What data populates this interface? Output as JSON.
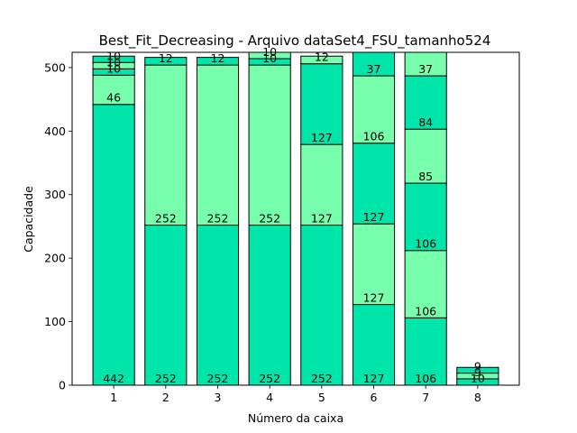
{
  "chart_data": {
    "type": "bar",
    "stacked": true,
    "title": "Best_Fit_Decreasing - Arquivo dataSet4_FSU_tamanho524",
    "xlabel": "Número da caixa",
    "ylabel": "Capacidade",
    "xlim": [
      0.2,
      8.8
    ],
    "ylim": [
      0,
      524
    ],
    "yticks": [
      0,
      100,
      200,
      300,
      400,
      500
    ],
    "categories": [
      "1",
      "2",
      "3",
      "4",
      "5",
      "6",
      "7",
      "8"
    ],
    "bins": [
      [
        442,
        46,
        10,
        10,
        10
      ],
      [
        252,
        252,
        12
      ],
      [
        252,
        252,
        12
      ],
      [
        252,
        252,
        10,
        10
      ],
      [
        252,
        127,
        127,
        12
      ],
      [
        127,
        127,
        127,
        106,
        37
      ],
      [
        106,
        106,
        106,
        85,
        84,
        37
      ],
      [
        10,
        9,
        9
      ]
    ],
    "colors": [
      "#00e6aa",
      "#78ffae"
    ],
    "edge_color": "#000000",
    "grid": false
  }
}
